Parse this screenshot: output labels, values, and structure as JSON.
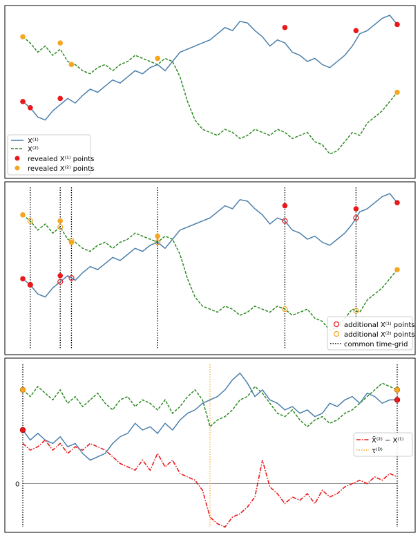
{
  "chart_data": [
    {
      "type": "line",
      "title": "",
      "xlabel": "",
      "ylabel": "",
      "xlim": [
        0,
        100
      ],
      "ylim": [
        0,
        100
      ],
      "grid": false,
      "legend": {
        "placement": "lower-left",
        "entries": [
          {
            "label": "X^(1)",
            "style": "solid",
            "color": "#4a7fab"
          },
          {
            "label": "X^(2)",
            "style": "dashed",
            "color": "#2a8a1f"
          },
          {
            "label": "revealed X^(1) points",
            "style": "marker",
            "color": "#e8191b"
          },
          {
            "label": "revealed X^(2) points",
            "style": "marker",
            "color": "#f5a623"
          }
        ]
      },
      "series": [
        {
          "name": "X^(1)",
          "color": "#4a7fab",
          "x": [
            0,
            2,
            4,
            6,
            8,
            10,
            12,
            14,
            16,
            18,
            20,
            22,
            24,
            26,
            28,
            30,
            32,
            34,
            36,
            38,
            40,
            42,
            44,
            46,
            48,
            50,
            52,
            54,
            56,
            58,
            60,
            62,
            64,
            66,
            68,
            70,
            72,
            74,
            76,
            78,
            80,
            82,
            84,
            86,
            88,
            90,
            92,
            94,
            96,
            98,
            100
          ],
          "y": [
            44,
            40,
            34,
            32,
            38,
            42,
            46,
            43,
            48,
            52,
            50,
            54,
            58,
            56,
            60,
            64,
            62,
            66,
            68,
            64,
            70,
            76,
            78,
            80,
            82,
            84,
            88,
            92,
            90,
            96,
            95,
            90,
            86,
            80,
            84,
            82,
            76,
            74,
            70,
            72,
            68,
            66,
            70,
            74,
            80,
            88,
            90,
            94,
            98,
            100,
            94
          ]
        },
        {
          "name": "X^(2)",
          "color": "#2a8a1f",
          "x": [
            0,
            2,
            4,
            6,
            8,
            10,
            12,
            14,
            16,
            18,
            20,
            22,
            24,
            26,
            28,
            30,
            32,
            34,
            36,
            38,
            40,
            42,
            44,
            46,
            48,
            50,
            52,
            54,
            56,
            58,
            60,
            62,
            64,
            66,
            68,
            70,
            72,
            74,
            76,
            78,
            80,
            82,
            84,
            86,
            88,
            90,
            92,
            94,
            96,
            98,
            100
          ],
          "y": [
            86,
            82,
            76,
            80,
            74,
            78,
            70,
            68,
            64,
            62,
            66,
            68,
            64,
            68,
            70,
            74,
            72,
            70,
            68,
            72,
            70,
            60,
            44,
            32,
            26,
            24,
            22,
            26,
            24,
            20,
            22,
            26,
            24,
            22,
            26,
            24,
            20,
            22,
            24,
            18,
            16,
            10,
            12,
            18,
            24,
            22,
            30,
            34,
            38,
            44,
            50
          ]
        }
      ],
      "revealed_x1": [
        [
          0,
          44
        ],
        [
          2,
          40
        ],
        [
          10,
          46
        ],
        [
          70,
          92
        ],
        [
          89,
          90
        ],
        [
          100,
          94
        ]
      ],
      "revealed_x2": [
        [
          0,
          86
        ],
        [
          10,
          82
        ],
        [
          13,
          68
        ],
        [
          36,
          72
        ],
        [
          100,
          50
        ]
      ]
    },
    {
      "type": "line",
      "title": "",
      "xlabel": "",
      "ylabel": "",
      "xlim": [
        0,
        100
      ],
      "ylim": [
        0,
        100
      ],
      "grid": false,
      "legend": {
        "placement": "lower-right",
        "entries": [
          {
            "label": "additional X^(1) points",
            "style": "open-marker",
            "color": "#e8191b"
          },
          {
            "label": "additional X^(2) points",
            "style": "open-marker",
            "color": "#f5a623"
          },
          {
            "label": "common time-grid",
            "style": "dotted",
            "color": "#000000"
          }
        ]
      },
      "grid_times": [
        2,
        10,
        13,
        36,
        70,
        89
      ]
    },
    {
      "type": "line",
      "title": "",
      "xlabel": "",
      "ylabel": "",
      "xlim": [
        0,
        100
      ],
      "ylim": [
        -25,
        70
      ],
      "yticks": [
        {
          "value": 0,
          "label": "0"
        }
      ],
      "grid": false,
      "legend": {
        "placement": "center-right",
        "entries": [
          {
            "label": "X̃^(2) − X^(1)",
            "style": "dashdot",
            "color": "#e8191b"
          },
          {
            "label": "τ^(D)",
            "style": "dotted",
            "color": "#f5a623"
          }
        ]
      },
      "series": [
        {
          "name": "X̃^(2) − X^(1)",
          "color": "#e8191b",
          "x": [
            0,
            2,
            4,
            6,
            8,
            10,
            12,
            14,
            16,
            18,
            20,
            22,
            24,
            26,
            28,
            30,
            32,
            34,
            36,
            38,
            40,
            42,
            44,
            46,
            48,
            50,
            52,
            54,
            56,
            58,
            60,
            62,
            64,
            66,
            68,
            70,
            72,
            74,
            76,
            78,
            80,
            82,
            84,
            86,
            88,
            90,
            92,
            94,
            96,
            98,
            100
          ],
          "y": [
            24,
            20,
            22,
            26,
            20,
            24,
            18,
            22,
            20,
            24,
            22,
            20,
            16,
            12,
            10,
            8,
            14,
            8,
            18,
            10,
            14,
            6,
            4,
            2,
            -4,
            -20,
            -24,
            -26,
            -20,
            -18,
            -14,
            -8,
            14,
            -2,
            -6,
            -12,
            -8,
            -10,
            -6,
            -12,
            -4,
            -8,
            -6,
            -2,
            0,
            2,
            0,
            4,
            2,
            6,
            4
          ]
        },
        {
          "name": "upper path (green)",
          "color": "#2a8a1f",
          "x": [
            0,
            2,
            4,
            6,
            8,
            10,
            12,
            14,
            16,
            18,
            20,
            22,
            24,
            26,
            28,
            30,
            32,
            34,
            36,
            38,
            40,
            42,
            44,
            46,
            48,
            50,
            52,
            54,
            56,
            58,
            60,
            62,
            64,
            66,
            68,
            70,
            72,
            74,
            76,
            78,
            80,
            82,
            84,
            86,
            88,
            90,
            92,
            94,
            96,
            98,
            100
          ],
          "y": [
            56,
            52,
            58,
            54,
            50,
            56,
            48,
            52,
            46,
            50,
            54,
            48,
            44,
            50,
            52,
            46,
            50,
            48,
            44,
            50,
            42,
            46,
            52,
            56,
            50,
            34,
            38,
            40,
            44,
            50,
            52,
            58,
            54,
            48,
            42,
            40,
            44,
            38,
            34,
            38,
            40,
            36,
            38,
            42,
            44,
            48,
            52,
            56,
            60,
            58,
            56
          ]
        },
        {
          "name": "lower path (blue)",
          "color": "#4a7fab",
          "x": [
            0,
            2,
            4,
            6,
            8,
            10,
            12,
            14,
            16,
            18,
            20,
            22,
            24,
            26,
            28,
            30,
            32,
            34,
            36,
            38,
            40,
            42,
            44,
            46,
            48,
            50,
            52,
            54,
            56,
            58,
            60,
            62,
            64,
            66,
            68,
            70,
            72,
            74,
            76,
            78,
            80,
            82,
            84,
            86,
            88,
            90,
            92,
            94,
            96,
            98,
            100
          ],
          "y": [
            32,
            26,
            30,
            26,
            24,
            28,
            22,
            24,
            18,
            14,
            16,
            18,
            24,
            28,
            30,
            36,
            32,
            34,
            30,
            36,
            32,
            38,
            42,
            44,
            48,
            50,
            52,
            56,
            62,
            66,
            60,
            52,
            56,
            50,
            48,
            44,
            46,
            42,
            44,
            40,
            42,
            48,
            46,
            50,
            52,
            48,
            54,
            52,
            48,
            50,
            50
          ]
        }
      ],
      "tau_x": 50,
      "end_markers": [
        [
          0,
          32
        ],
        [
          100,
          50
        ],
        [
          0,
          56
        ],
        [
          100,
          56
        ]
      ]
    }
  ]
}
